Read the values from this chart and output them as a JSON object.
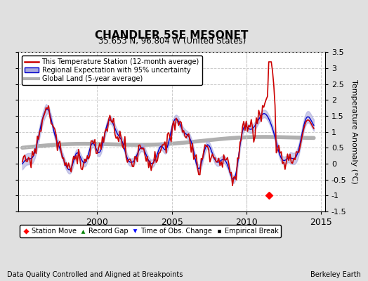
{
  "title": "CHANDLER 5SE MESONET",
  "subtitle": "35.653 N, 96.804 W (United States)",
  "xlabel_left": "Data Quality Controlled and Aligned at Breakpoints",
  "xlabel_right": "Berkeley Earth",
  "ylabel": "Temperature Anomaly (°C)",
  "xlim": [
    1994.75,
    2015.25
  ],
  "ylim": [
    -1.5,
    3.5
  ],
  "yticks": [
    -1.5,
    -1.0,
    -0.5,
    0,
    0.5,
    1.0,
    1.5,
    2.0,
    2.5,
    3.0,
    3.5
  ],
  "xticks": [
    2000,
    2005,
    2010,
    2015
  ],
  "fig_bg_color": "#e0e0e0",
  "plot_bg_color": "#ffffff",
  "legend_entries": [
    "This Temperature Station (12-month average)",
    "Regional Expectation with 95% uncertainty",
    "Global Land (5-year average)"
  ],
  "regional_line_color": "#0000cc",
  "regional_fill_color": "#aaaadd",
  "global_line_color": "#b0b0b0",
  "red_line_color": "#cc0000",
  "station_move_x": 2011.5,
  "station_move_y": -1.0
}
